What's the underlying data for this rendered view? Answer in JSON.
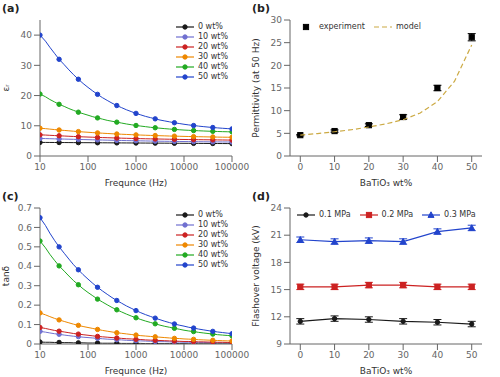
{
  "chart_data": [
    {
      "type": "line",
      "annotation": "(a)",
      "x_label": "Frequnce (Hz)",
      "y_label": "εᵣ",
      "log": "x",
      "x": [
        10,
        13,
        16,
        20,
        25,
        32,
        40,
        50,
        63,
        79,
        100,
        126,
        158,
        200,
        251,
        316,
        398,
        501,
        631,
        794,
        1000,
        1259,
        1585,
        1995,
        2512,
        3162,
        3981,
        5012,
        6310,
        7943,
        10000,
        12589,
        15849,
        19953,
        25119,
        31623,
        39811,
        50119,
        63096,
        79433,
        100000
      ],
      "xlim": [
        10,
        100000
      ],
      "xticks": [
        10,
        100,
        1000,
        10000,
        100000
      ],
      "ylim": [
        0,
        45
      ],
      "yticks": [
        0,
        10,
        20,
        30,
        40
      ],
      "legend": "upper right",
      "grid": false,
      "series": [
        {
          "name": "0 wt%",
          "color": "#1a1a1a",
          "marker": "circle",
          "values": [
            4.5,
            4.49,
            4.48,
            4.47,
            4.46,
            4.45,
            4.44,
            4.43,
            4.42,
            4.41,
            4.4,
            4.39,
            4.38,
            4.37,
            4.36,
            4.35,
            4.34,
            4.33,
            4.32,
            4.31,
            4.3,
            4.29,
            4.28,
            4.27,
            4.26,
            4.25,
            4.24,
            4.23,
            4.22,
            4.21,
            4.2,
            4.19,
            4.18,
            4.17,
            4.16,
            4.15,
            4.14,
            4.13,
            4.12,
            4.11,
            4.1
          ]
        },
        {
          "name": "10 wt%",
          "color": "#7070d0",
          "marker": "circle",
          "values": [
            5.8,
            5.76,
            5.72,
            5.68,
            5.64,
            5.6,
            5.56,
            5.52,
            5.48,
            5.44,
            5.4,
            5.36,
            5.32,
            5.28,
            5.24,
            5.2,
            5.16,
            5.13,
            5.1,
            5.07,
            5.04,
            5.01,
            4.98,
            4.95,
            4.92,
            4.89,
            4.87,
            4.85,
            4.83,
            4.81,
            4.79,
            4.77,
            4.75,
            4.73,
            4.71,
            4.69,
            4.67,
            4.66,
            4.65,
            4.64,
            4.63
          ]
        },
        {
          "name": "20 wt%",
          "color": "#cc2222",
          "marker": "circle",
          "values": [
            7.0,
            6.93,
            6.85,
            6.77,
            6.69,
            6.61,
            6.53,
            6.46,
            6.39,
            6.33,
            6.27,
            6.21,
            6.15,
            6.1,
            6.05,
            6.0,
            5.95,
            5.9,
            5.86,
            5.82,
            5.78,
            5.74,
            5.7,
            5.67,
            5.64,
            5.61,
            5.58,
            5.55,
            5.52,
            5.49,
            5.46,
            5.44,
            5.42,
            5.4,
            5.38,
            5.36,
            5.34,
            5.32,
            5.3,
            5.28,
            5.26
          ]
        },
        {
          "name": "30 wt%",
          "color": "#ee8800",
          "marker": "circle",
          "values": [
            9.2,
            9.05,
            8.9,
            8.75,
            8.6,
            8.46,
            8.33,
            8.2,
            8.08,
            7.96,
            7.85,
            7.74,
            7.64,
            7.54,
            7.45,
            7.36,
            7.28,
            7.2,
            7.13,
            7.06,
            6.99,
            6.93,
            6.87,
            6.81,
            6.76,
            6.71,
            6.66,
            6.61,
            6.57,
            6.53,
            6.49,
            6.45,
            6.41,
            6.38,
            6.35,
            6.32,
            6.29,
            6.26,
            6.23,
            6.21,
            6.19
          ]
        },
        {
          "name": "40 wt%",
          "color": "#22aa22",
          "marker": "circle",
          "values": [
            20.5,
            19.6,
            18.7,
            17.9,
            17.1,
            16.4,
            15.7,
            15.1,
            14.5,
            14.0,
            13.5,
            13.0,
            12.6,
            12.2,
            11.8,
            11.5,
            11.2,
            10.9,
            10.6,
            10.35,
            10.1,
            9.9,
            9.7,
            9.5,
            9.35,
            9.2,
            9.05,
            8.92,
            8.8,
            8.69,
            8.58,
            8.5,
            8.42,
            8.35,
            8.28,
            8.22,
            8.16,
            8.11,
            8.06,
            8.02,
            7.98
          ]
        },
        {
          "name": "50 wt%",
          "color": "#2244cc",
          "marker": "circle",
          "values": [
            40.0,
            38.0,
            36.0,
            34.0,
            32.0,
            30.2,
            28.5,
            26.9,
            25.4,
            24.0,
            22.7,
            21.5,
            20.4,
            19.3,
            18.4,
            17.5,
            16.7,
            16.0,
            15.3,
            14.7,
            14.1,
            13.6,
            13.1,
            12.7,
            12.3,
            11.9,
            11.6,
            11.3,
            11.0,
            10.75,
            10.5,
            10.28,
            10.08,
            9.9,
            9.73,
            9.57,
            9.43,
            9.3,
            9.18,
            9.07,
            8.97
          ]
        }
      ]
    },
    {
      "type": "line",
      "annotation": "(b)",
      "x_label": "BaTiO₃ wt%",
      "y_label": "Permittivity (at 50 Hz)",
      "xlim": [
        -3,
        53
      ],
      "xticks": [
        0,
        10,
        20,
        30,
        40,
        50
      ],
      "ylim": [
        0,
        30
      ],
      "yticks": [
        0,
        5,
        10,
        15,
        20,
        25,
        30
      ],
      "legend": "upper left",
      "grid": false,
      "series": [
        {
          "name": "experiment",
          "type": "scatter",
          "color": "black",
          "marker": "square",
          "x": [
            0,
            10,
            20,
            30,
            40,
            50
          ],
          "values": [
            4.6,
            5.5,
            6.8,
            8.6,
            15.0,
            26.2
          ],
          "error": [
            0.15,
            0.25,
            0.3,
            0.5,
            0.6,
            0.8
          ]
        },
        {
          "name": "model",
          "type": "line",
          "color": "#ccaa44",
          "line_style": "dashed",
          "x": [
            0,
            5,
            10,
            15,
            20,
            25,
            30,
            35,
            40,
            45,
            50
          ],
          "values": [
            4.6,
            4.95,
            5.35,
            5.8,
            6.4,
            7.1,
            8.0,
            9.5,
            12.0,
            16.5,
            24.5
          ]
        }
      ]
    },
    {
      "type": "line",
      "annotation": "(c)",
      "x_label": "Frequnce (Hz)",
      "y_label": "tanδ",
      "log": "x",
      "x": [
        10,
        13,
        16,
        20,
        25,
        32,
        40,
        50,
        63,
        79,
        100,
        126,
        158,
        200,
        251,
        316,
        398,
        501,
        631,
        794,
        1000,
        1259,
        1585,
        1995,
        2512,
        3162,
        3981,
        5012,
        6310,
        7943,
        10000,
        12589,
        15849,
        19953,
        25119,
        31623,
        39811,
        50119,
        63096,
        79433,
        100000
      ],
      "xlim": [
        10,
        100000
      ],
      "xticks": [
        10,
        100,
        1000,
        10000,
        100000
      ],
      "ylim": [
        0,
        0.7
      ],
      "yticks": [
        0,
        0.1,
        0.2,
        0.3,
        0.4,
        0.5,
        0.6,
        0.7
      ],
      "legend": "upper right",
      "grid": false,
      "series": [
        {
          "name": "0 wt%",
          "color": "#1a1a1a",
          "marker": "circle",
          "values": [
            0.01,
            0.009,
            0.009,
            0.008,
            0.008,
            0.007,
            0.007,
            0.006,
            0.006,
            0.006,
            0.005,
            0.005,
            0.005,
            0.004,
            0.004,
            0.004,
            0.004,
            0.003,
            0.003,
            0.003,
            0.003,
            0.003,
            0.002,
            0.002,
            0.002,
            0.002,
            0.002,
            0.002,
            0.002,
            0.002,
            0.002,
            0.001,
            0.001,
            0.001,
            0.001,
            0.001,
            0.001,
            0.001,
            0.001,
            0.001,
            0.001
          ]
        },
        {
          "name": "10 wt%",
          "color": "#7070d0",
          "marker": "circle",
          "values": [
            0.065,
            0.061,
            0.057,
            0.053,
            0.05,
            0.046,
            0.043,
            0.04,
            0.038,
            0.035,
            0.033,
            0.031,
            0.029,
            0.027,
            0.025,
            0.024,
            0.022,
            0.021,
            0.019,
            0.018,
            0.017,
            0.016,
            0.015,
            0.014,
            0.013,
            0.012,
            0.012,
            0.011,
            0.01,
            0.01,
            0.009,
            0.009,
            0.008,
            0.008,
            0.008,
            0.007,
            0.007,
            0.007,
            0.006,
            0.006,
            0.006
          ]
        },
        {
          "name": "20 wt%",
          "color": "#cc2222",
          "marker": "circle",
          "values": [
            0.085,
            0.08,
            0.075,
            0.07,
            0.066,
            0.062,
            0.058,
            0.054,
            0.051,
            0.048,
            0.045,
            0.042,
            0.039,
            0.037,
            0.035,
            0.033,
            0.031,
            0.029,
            0.027,
            0.026,
            0.024,
            0.023,
            0.021,
            0.02,
            0.019,
            0.018,
            0.017,
            0.016,
            0.015,
            0.014,
            0.013,
            0.013,
            0.012,
            0.011,
            0.011,
            0.01,
            0.01,
            0.009,
            0.009,
            0.008,
            0.008
          ]
        },
        {
          "name": "30 wt%",
          "color": "#ee8800",
          "marker": "circle",
          "values": [
            0.16,
            0.15,
            0.141,
            0.132,
            0.124,
            0.116,
            0.109,
            0.102,
            0.096,
            0.09,
            0.085,
            0.08,
            0.075,
            0.07,
            0.066,
            0.062,
            0.058,
            0.055,
            0.052,
            0.049,
            0.046,
            0.043,
            0.041,
            0.039,
            0.037,
            0.035,
            0.033,
            0.031,
            0.029,
            0.028,
            0.026,
            0.025,
            0.024,
            0.022,
            0.021,
            0.02,
            0.019,
            0.018,
            0.017,
            0.016,
            0.016
          ]
        },
        {
          "name": "40 wt%",
          "color": "#22aa22",
          "marker": "circle",
          "values": [
            0.53,
            0.495,
            0.462,
            0.431,
            0.402,
            0.375,
            0.35,
            0.326,
            0.305,
            0.284,
            0.265,
            0.248,
            0.231,
            0.216,
            0.202,
            0.188,
            0.176,
            0.165,
            0.154,
            0.144,
            0.135,
            0.126,
            0.118,
            0.111,
            0.104,
            0.097,
            0.091,
            0.086,
            0.081,
            0.076,
            0.071,
            0.067,
            0.064,
            0.06,
            0.057,
            0.054,
            0.051,
            0.048,
            0.046,
            0.044,
            0.042
          ]
        },
        {
          "name": "50 wt%",
          "color": "#2244cc",
          "marker": "circle",
          "values": [
            0.65,
            0.61,
            0.571,
            0.534,
            0.5,
            0.467,
            0.437,
            0.408,
            0.382,
            0.357,
            0.334,
            0.312,
            0.292,
            0.273,
            0.256,
            0.239,
            0.224,
            0.21,
            0.196,
            0.184,
            0.172,
            0.161,
            0.151,
            0.142,
            0.133,
            0.125,
            0.117,
            0.11,
            0.103,
            0.097,
            0.092,
            0.086,
            0.082,
            0.077,
            0.073,
            0.069,
            0.065,
            0.062,
            0.059,
            0.056,
            0.053
          ]
        }
      ]
    },
    {
      "type": "line",
      "annotation": "(d)",
      "x_label": "BaTiO₃ wt%",
      "y_label": "Flashover voltage (kV)",
      "xlim": [
        -3,
        53
      ],
      "xticks": [
        0,
        10,
        20,
        30,
        40,
        50
      ],
      "ylim": [
        9,
        24
      ],
      "yticks": [
        9,
        12,
        15,
        18,
        21,
        24
      ],
      "legend": "upper left",
      "grid": false,
      "series": [
        {
          "name": "0.1 MPa",
          "type": "line",
          "color": "#1a1a1a",
          "marker": "circle",
          "x": [
            0,
            10,
            20,
            30,
            40,
            50
          ],
          "values": [
            11.5,
            11.8,
            11.7,
            11.5,
            11.4,
            11.2
          ],
          "error": 0.3
        },
        {
          "name": "0.2 MPa",
          "type": "line",
          "color": "#cc2222",
          "marker": "square",
          "x": [
            0,
            10,
            20,
            30,
            40,
            50
          ],
          "values": [
            15.3,
            15.3,
            15.5,
            15.5,
            15.3,
            15.3
          ],
          "error": 0.3
        },
        {
          "name": "0.3 MPa",
          "type": "line",
          "color": "#2244cc",
          "marker": "triangle",
          "x": [
            0,
            10,
            20,
            30,
            40,
            50
          ],
          "values": [
            20.5,
            20.3,
            20.4,
            20.3,
            21.4,
            21.8
          ],
          "error": 0.3
        }
      ]
    }
  ]
}
